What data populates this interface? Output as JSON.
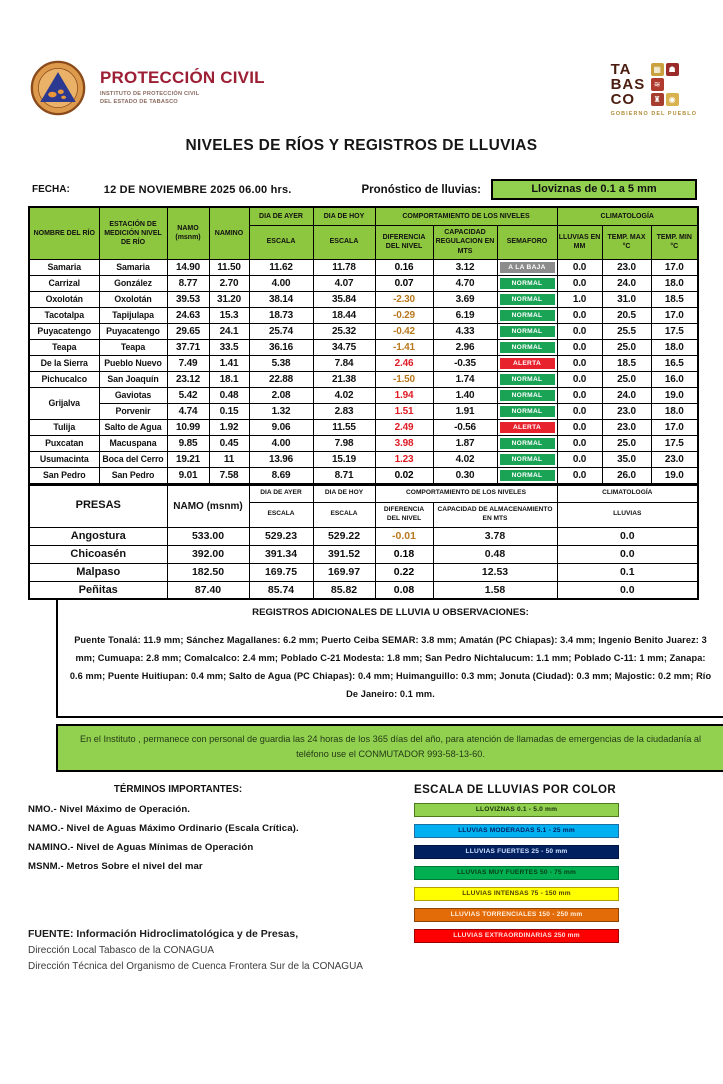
{
  "header": {
    "emblem": "proteccion-civil-emblem",
    "brand": "PROTECCIÓN CIVIL",
    "brand_sub1": "INSTITUTO DE PROTECCIÓN CIVIL",
    "brand_sub2": "DEL ESTADO DE TABASCO",
    "gov_lines": [
      "TA",
      "BAS",
      "CO"
    ],
    "gov_sub": "GOBIERNO DEL PUEBLO"
  },
  "title": "NIVELES DE RÍOS Y REGISTROS DE LLUVIAS",
  "date_row": {
    "label": "FECHA:",
    "value": "12 DE NOVIEMBRE 2025   06.00  hrs.",
    "forecast_label": "Pronóstico de lluvias:",
    "forecast_value": "Lloviznas de 0.1 a 5 mm"
  },
  "colors": {
    "header_green": "#8dc63f",
    "banner_green": "#92d050",
    "semaforo": {
      "NORMAL": "#1ba355",
      "ALERTA": "#e8222d",
      "A LA BAJA": "#8c8c8c"
    },
    "dif_negative": "#b8791e",
    "dif_alert": "#e01b24",
    "dif_normal": "#000000"
  },
  "rivers_table": {
    "headers": {
      "river": "NOMBRE DEL RÍO",
      "station": "ESTACIÓN DE MEDICIÓN NIVEL DE RÍO",
      "namo": "NAMO (msnm)",
      "namino": "NAMINO",
      "day_yesterday": "DIA DE AYER",
      "day_today": "DIA DE HOY",
      "escala": "ESCALA",
      "comportamiento": "COMPORTAMIENTO DE LOS NIVELES",
      "diferencia": "DIFERENCIA DEL NIVEL",
      "capacidad": "CAPACIDAD REGULACION EN MTS",
      "semaforo": "SEMAFORO",
      "climatologia": "CLIMATOLOGÍA",
      "lluvias": "LLUVIAS EN MM",
      "tmax": "TEMP. MAX °C",
      "tmin": "TEMP.  MIN °C"
    },
    "rows": [
      {
        "river": "Samaria",
        "station": "Samaria",
        "namo": "14.90",
        "namino": "11.50",
        "ayer": "11.62",
        "hoy": "11.78",
        "dif": "0.16",
        "dc": "#000000",
        "cap": "3.12",
        "sem": "A LA BAJA",
        "lluvias": "0.0",
        "tmax": "23.0",
        "tmin": "17.0"
      },
      {
        "river": "Carrizal",
        "station": "González",
        "namo": "8.77",
        "namino": "2.70",
        "ayer": "4.00",
        "hoy": "4.07",
        "dif": "0.07",
        "dc": "#000000",
        "cap": "4.70",
        "sem": "NORMAL",
        "lluvias": "0.0",
        "tmax": "24.0",
        "tmin": "18.0"
      },
      {
        "river": "Oxolotán",
        "station": "Oxolotán",
        "namo": "39.53",
        "namino": "31.20",
        "ayer": "38.14",
        "hoy": "35.84",
        "dif": "-2.30",
        "dc": "#b8791e",
        "cap": "3.69",
        "sem": "NORMAL",
        "lluvias": "1.0",
        "tmax": "31.0",
        "tmin": "18.5"
      },
      {
        "river": "Tacotalpa",
        "station": "Tapijulapa",
        "namo": "24.63",
        "namino": "15.3",
        "ayer": "18.73",
        "hoy": "18.44",
        "dif": "-0.29",
        "dc": "#b8791e",
        "cap": "6.19",
        "sem": "NORMAL",
        "lluvias": "0.0",
        "tmax": "20.5",
        "tmin": "17.0"
      },
      {
        "river": "Puyacatengo",
        "station": "Puyacatengo",
        "namo": "29.65",
        "namino": "24.1",
        "ayer": "25.74",
        "hoy": "25.32",
        "dif": "-0.42",
        "dc": "#b8791e",
        "cap": "4.33",
        "sem": "NORMAL",
        "lluvias": "0.0",
        "tmax": "25.5",
        "tmin": "17.5"
      },
      {
        "river": "Teapa",
        "station": "Teapa",
        "namo": "37.71",
        "namino": "33.5",
        "ayer": "36.16",
        "hoy": "34.75",
        "dif": "-1.41",
        "dc": "#b8791e",
        "cap": "2.96",
        "sem": "NORMAL",
        "lluvias": "0.0",
        "tmax": "25.0",
        "tmin": "18.0"
      },
      {
        "river": "De la Sierra",
        "station": "Pueblo Nuevo",
        "namo": "7.49",
        "namino": "1.41",
        "ayer": "5.38",
        "hoy": "7.84",
        "dif": "2.46",
        "dc": "#e01b24",
        "cap": "-0.35",
        "sem": "ALERTA",
        "lluvias": "0.0",
        "tmax": "18.5",
        "tmin": "16.5"
      },
      {
        "river": "Pichucalco",
        "station": "San Joaquín",
        "namo": "23.12",
        "namino": "18.1",
        "ayer": "22.88",
        "hoy": "21.38",
        "dif": "-1.50",
        "dc": "#b8791e",
        "cap": "1.74",
        "sem": "NORMAL",
        "lluvias": "0.0",
        "tmax": "25.0",
        "tmin": "16.0"
      },
      {
        "river": "Grijalva",
        "span": 2,
        "station": "Gaviotas",
        "namo": "5.42",
        "namino": "0.48",
        "ayer": "2.08",
        "hoy": "4.02",
        "dif": "1.94",
        "dc": "#e01b24",
        "cap": "1.40",
        "sem": "NORMAL",
        "lluvias": "0.0",
        "tmax": "24.0",
        "tmin": "19.0"
      },
      {
        "river": null,
        "station": "Porvenir",
        "namo": "4.74",
        "namino": "0.15",
        "ayer": "1.32",
        "hoy": "2.83",
        "dif": "1.51",
        "dc": "#e01b24",
        "cap": "1.91",
        "sem": "NORMAL",
        "lluvias": "0.0",
        "tmax": "23.0",
        "tmin": "18.0"
      },
      {
        "river": "Tulija",
        "station": "Salto de Agua",
        "namo": "10.99",
        "namino": "1.92",
        "ayer": "9.06",
        "hoy": "11.55",
        "dif": "2.49",
        "dc": "#e01b24",
        "cap": "-0.56",
        "sem": "ALERTA",
        "lluvias": "0.0",
        "tmax": "23.0",
        "tmin": "17.0"
      },
      {
        "river": "Puxcatan",
        "station": "Macuspana",
        "namo": "9.85",
        "namino": "0.45",
        "ayer": "4.00",
        "hoy": "7.98",
        "dif": "3.98",
        "dc": "#e01b24",
        "cap": "1.87",
        "sem": "NORMAL",
        "lluvias": "0.0",
        "tmax": "25.0",
        "tmin": "17.5"
      },
      {
        "river": "Usumacinta",
        "station": "Boca del Cerro",
        "namo": "19.21",
        "namino": "11",
        "ayer": "13.96",
        "hoy": "15.19",
        "dif": "1.23",
        "dc": "#e01b24",
        "cap": "4.02",
        "sem": "NORMAL",
        "lluvias": "0.0",
        "tmax": "35.0",
        "tmin": "23.0"
      },
      {
        "river": "San Pedro",
        "station": "San Pedro",
        "namo": "9.01",
        "namino": "7.58",
        "ayer": "8.69",
        "hoy": "8.71",
        "dif": "0.02",
        "dc": "#000000",
        "cap": "0.30",
        "sem": "NORMAL",
        "lluvias": "0.0",
        "tmax": "26.0",
        "tmin": "19.0"
      }
    ]
  },
  "presas_table": {
    "headers": {
      "presas": "PRESAS",
      "namo": "NAMO (msnm)",
      "day_yesterday": "DIA DE AYER",
      "day_today": "DIA DE HOY",
      "escala": "ESCALA",
      "comportamiento": "COMPORTAMIENTO DE LOS NIVELES",
      "diferencia": "DIFERENCIA DEL NIVEL",
      "capacidad": "CAPACIDAD DE ALMACENAMIENTO EN MTS",
      "climatologia": "CLIMATOLOGÍA",
      "lluvias": "LLUVIAS"
    },
    "rows": [
      {
        "presa": "Angostura",
        "namo": "533.00",
        "ayer": "529.23",
        "hoy": "529.22",
        "dif": "-0.01",
        "dc": "#b8791e",
        "cap": "3.78",
        "lluvias": "0.0"
      },
      {
        "presa": "Chicoasén",
        "namo": "392.00",
        "ayer": "391.34",
        "hoy": "391.52",
        "dif": "0.18",
        "dc": "#000000",
        "cap": "0.48",
        "lluvias": "0.0"
      },
      {
        "presa": "Malpaso",
        "namo": "182.50",
        "ayer": "169.75",
        "hoy": "169.97",
        "dif": "0.22",
        "dc": "#000000",
        "cap": "12.53",
        "lluvias": "0.1"
      },
      {
        "presa": "Peñitas",
        "namo": "87.40",
        "ayer": "85.74",
        "hoy": "85.82",
        "dif": "0.08",
        "dc": "#000000",
        "cap": "1.58",
        "lluvias": "0.0"
      }
    ]
  },
  "observations": {
    "title": "REGISTROS ADICIONALES DE LLUVIA U OBSERVACIONES:",
    "text": "Puente Tonalá: 11.9 mm; Sánchez Magallanes: 6.2 mm; Puerto Ceiba SEMAR: 3.8 mm; Amatán (PC Chiapas): 3.4 mm; Ingenio Benito Juarez: 3 mm; Cumuapa: 2.8 mm; Comalcalco: 2.4 mm; Poblado C-21 Modesta: 1.8 mm; San Pedro Nichtalucum: 1.1 mm; Poblado C-11: 1 mm; Zanapa: 0.6 mm; Puente Huitiupan: 0.4 mm; Salto de Agua (PC Chiapas): 0.4 mm; Huimanguillo: 0.3 mm; Jonuta (Ciudad): 0.3 mm; Majostic: 0.2 mm; Río De Janeiro: 0.1 mm."
  },
  "notice": "En el Instituto , permanece con personal de guardia las 24 horas de los 365 días del año, para atención de llamadas de emergencias de la ciudadanía al teléfono use el CONMUTADOR  993-58-13-60.",
  "terms": {
    "title": "TÉRMINOS IMPORTANTES:",
    "items": [
      "NMO.- Nivel Máximo de Operación.",
      "NAMO.- Nivel de Aguas Máximo Ordinario (Escala Crítica).",
      "NAMINO.- Nivel de Aguas Mínimas de Operación",
      "MSNM.- Metros Sobre el nivel del mar"
    ]
  },
  "scale": {
    "title": "ESCALA DE LLUVIAS POR COLOR",
    "bands": [
      {
        "label": "LLOVIZNAS   0.1 -  5.0 mm",
        "bg": "#92d050",
        "fg": "#16300a",
        "border": "#4e7a1e"
      },
      {
        "label": "LLUVIAS MODERADAS 5.1 - 25 mm",
        "bg": "#00b0f0",
        "fg": "#002060",
        "border": "#1d6fa3"
      },
      {
        "label": "LLUVIAS FUERTES       25 - 50 mm",
        "bg": "#002060",
        "fg": "#cfe0ff",
        "border": "#001540"
      },
      {
        "label": "LLUVIAS MUY FUERTES   50 - 75 mm",
        "bg": "#00b050",
        "fg": "#0a3a1a",
        "border": "#007a35"
      },
      {
        "label": "LLUVIAS INTENSAS    75 - 150 mm",
        "bg": "#ffff00",
        "fg": "#4d3f00",
        "border": "#b3a000"
      },
      {
        "label": "LLUVIAS TORRENCIALES  150 - 250  mm",
        "bg": "#e36c09",
        "fg": "#ffeedd",
        "border": "#8f4505"
      },
      {
        "label": "LLUVIAS EXTRAORDINARIAS 250  mm",
        "bg": "#ff0000",
        "fg": "#ffe0e0",
        "border": "#990000"
      }
    ]
  },
  "source": {
    "line1": "FUENTE: Información Hidroclimatológica y de Presas,",
    "line2": "Dirección Local Tabasco de la CONAGUA",
    "line3": "Dirección Técnica del Organismo de Cuenca Frontera Sur de la CONAGUA"
  }
}
